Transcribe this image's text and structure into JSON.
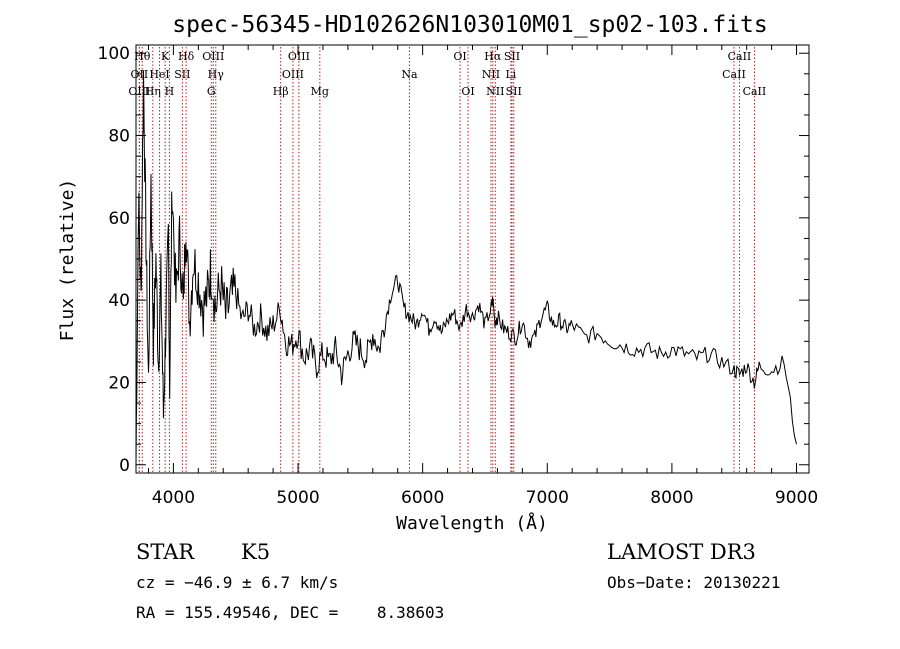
{
  "chart_data": {
    "type": "line",
    "title": "spec-56345-HD102626N103010M01_sp02-103.fits",
    "xlabel": "Wavelength (Å)",
    "ylabel": "Flux (relative)",
    "xlim": [
      3700,
      9100
    ],
    "ylim": [
      -2,
      102
    ],
    "xticks": [
      4000,
      5000,
      6000,
      7000,
      8000,
      9000
    ],
    "yticks": [
      0,
      20,
      40,
      60,
      80,
      100
    ],
    "xtick_labels": [
      "4000",
      "5000",
      "6000",
      "7000",
      "8000",
      "9000"
    ],
    "ytick_labels": [
      "0",
      "20",
      "40",
      "60",
      "80",
      "100"
    ],
    "grid": false,
    "line_color": "#000000",
    "marker_color": "#b22222",
    "spectrum": {
      "x": [
        3700,
        3720,
        3740,
        3760,
        3780,
        3800,
        3820,
        3840,
        3860,
        3880,
        3900,
        3920,
        3940,
        3960,
        3970,
        3990,
        4020,
        4050,
        4080,
        4100,
        4130,
        4160,
        4200,
        4240,
        4280,
        4300,
        4340,
        4380,
        4420,
        4460,
        4500,
        4550,
        4600,
        4650,
        4700,
        4750,
        4800,
        4860,
        4900,
        4950,
        5000,
        5050,
        5100,
        5150,
        5200,
        5250,
        5300,
        5350,
        5400,
        5450,
        5500,
        5550,
        5600,
        5650,
        5700,
        5750,
        5800,
        5850,
        5900,
        5950,
        6000,
        6050,
        6100,
        6150,
        6200,
        6250,
        6300,
        6350,
        6400,
        6450,
        6500,
        6550,
        6563,
        6580,
        6600,
        6650,
        6700,
        6750,
        6800,
        6850,
        6900,
        6950,
        7000,
        7050,
        7100,
        7150,
        7200,
        7300,
        7400,
        7500,
        7600,
        7700,
        7800,
        7900,
        8000,
        8100,
        8200,
        8300,
        8400,
        8500,
        8542,
        8600,
        8662,
        8700,
        8800,
        8900,
        9000
      ],
      "y": [
        0,
        65,
        40,
        95,
        55,
        20,
        70,
        30,
        50,
        25,
        45,
        12,
        35,
        55,
        20,
        68,
        40,
        55,
        38,
        60,
        35,
        50,
        45,
        38,
        42,
        48,
        38,
        44,
        36,
        40,
        42,
        35,
        38,
        33,
        36,
        32,
        34,
        38,
        30,
        29,
        32,
        26,
        28,
        24,
        27,
        25,
        28,
        22,
        27,
        30,
        28,
        26,
        32,
        28,
        35,
        42,
        45,
        38,
        36,
        34,
        38,
        33,
        36,
        32,
        35,
        37,
        33,
        38,
        36,
        39,
        34,
        38,
        40,
        35,
        36,
        33,
        32,
        31,
        35,
        30,
        31,
        36,
        38,
        34,
        35,
        33,
        34,
        31,
        32,
        30,
        29,
        28,
        28,
        27,
        28,
        27,
        26,
        27,
        25,
        23,
        22,
        24,
        20,
        24,
        23,
        25,
        5
      ]
    },
    "lines": [
      {
        "name": "OII",
        "x": 3727,
        "row": 1
      },
      {
        "name": "OIII",
        "x": 3727,
        "row": 2
      },
      {
        "name": "Hθ",
        "x": 3750,
        "row": 0
      },
      {
        "name": "Hη",
        "x": 3835,
        "row": 2
      },
      {
        "name": "HeI",
        "x": 3889,
        "row": 1
      },
      {
        "name": "K",
        "x": 3934,
        "row": 0
      },
      {
        "name": "H",
        "x": 3968,
        "row": 2
      },
      {
        "name": "SII",
        "x": 4072,
        "row": 1
      },
      {
        "name": "Hδ",
        "x": 4102,
        "row": 0
      },
      {
        "name": "OIII",
        "x": 4320,
        "row": 0
      },
      {
        "name": "Hγ",
        "x": 4340,
        "row": 1
      },
      {
        "name": "G",
        "x": 4304,
        "row": 2
      },
      {
        "name": "Hβ",
        "x": 4861,
        "row": 2
      },
      {
        "name": "OIII",
        "x": 4959,
        "row": 1
      },
      {
        "name": "OIII",
        "x": 5007,
        "row": 0
      },
      {
        "name": "Mg",
        "x": 5175,
        "row": 2
      },
      {
        "name": "Na",
        "x": 5894,
        "row": 1
      },
      {
        "name": "OI",
        "x": 6300,
        "row": 0
      },
      {
        "name": "OI",
        "x": 6364,
        "row": 2
      },
      {
        "name": "NII",
        "x": 6548,
        "row": 1
      },
      {
        "name": "Hα",
        "x": 6563,
        "row": 0
      },
      {
        "name": "NII",
        "x": 6583,
        "row": 2
      },
      {
        "name": "SII",
        "x": 6717,
        "row": 0
      },
      {
        "name": "Li",
        "x": 6708,
        "row": 1
      },
      {
        "name": "SII",
        "x": 6731,
        "row": 2
      },
      {
        "name": "CaII",
        "x": 8498,
        "row": 1
      },
      {
        "name": "CaII",
        "x": 8542,
        "row": 0
      },
      {
        "name": "CaII",
        "x": 8662,
        "row": 2
      }
    ]
  },
  "info": {
    "object_class": "STAR",
    "subclass": "K5",
    "redshift_line": "cz = −46.9 ± 6.7 km/s",
    "coords_line": "RA = 155.49546, DEC =    8.38603",
    "survey": "LAMOST DR3",
    "obs_date_line": "Obs−Date: 20130221"
  }
}
